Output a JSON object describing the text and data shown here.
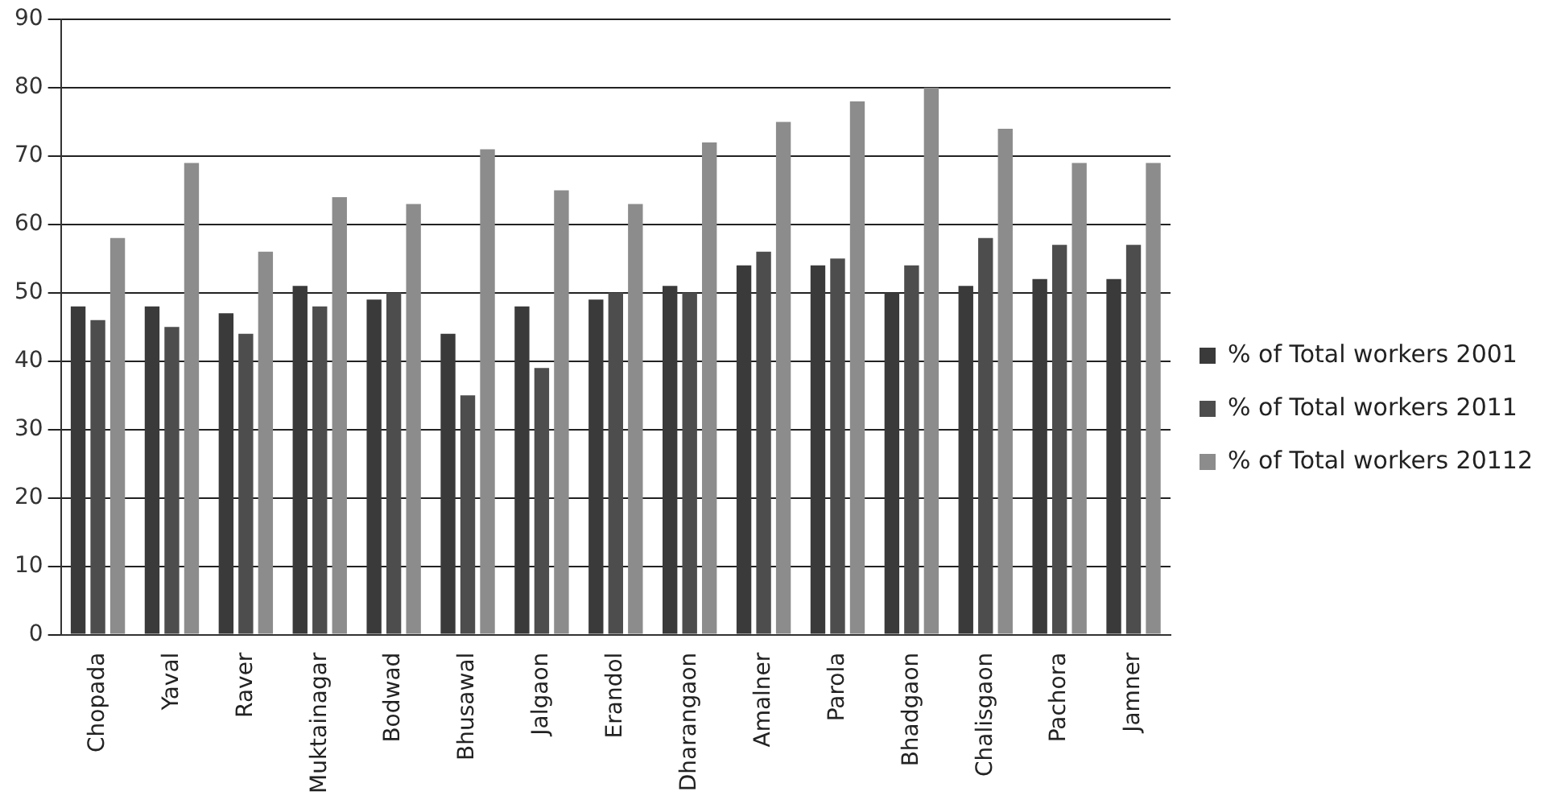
{
  "chart_data": {
    "type": "bar",
    "categories": [
      "Chopada",
      "Yaval",
      "Raver",
      "Muktainagar",
      "Bodwad",
      "Bhusawal",
      "Jalgaon",
      "Erandol",
      "Dharangaon",
      "Amalner",
      "Parola",
      "Bhadgaon",
      "Chalisgaon",
      "Pachora",
      "Jamner"
    ],
    "series": [
      {
        "name": "% of Total workers 2001",
        "color": "#3a3a3a",
        "values": [
          48,
          48,
          47,
          51,
          49,
          44,
          48,
          49,
          51,
          54,
          54,
          50,
          51,
          52,
          52
        ]
      },
      {
        "name": "% of Total workers 2011",
        "color": "#4d4d4d",
        "values": [
          46,
          45,
          44,
          48,
          50,
          35,
          39,
          50,
          50,
          56,
          55,
          54,
          58,
          57,
          57
        ]
      },
      {
        "name": "% of Total workers 20112",
        "color": "#8c8c8c",
        "values": [
          58,
          69,
          56,
          64,
          63,
          71,
          65,
          63,
          72,
          75,
          78,
          80,
          74,
          69,
          69
        ]
      }
    ],
    "ylim": [
      0,
      90
    ],
    "yticks": [
      0,
      10,
      20,
      30,
      40,
      50,
      60,
      70,
      80,
      90
    ],
    "grid": "y",
    "legend": "right"
  }
}
